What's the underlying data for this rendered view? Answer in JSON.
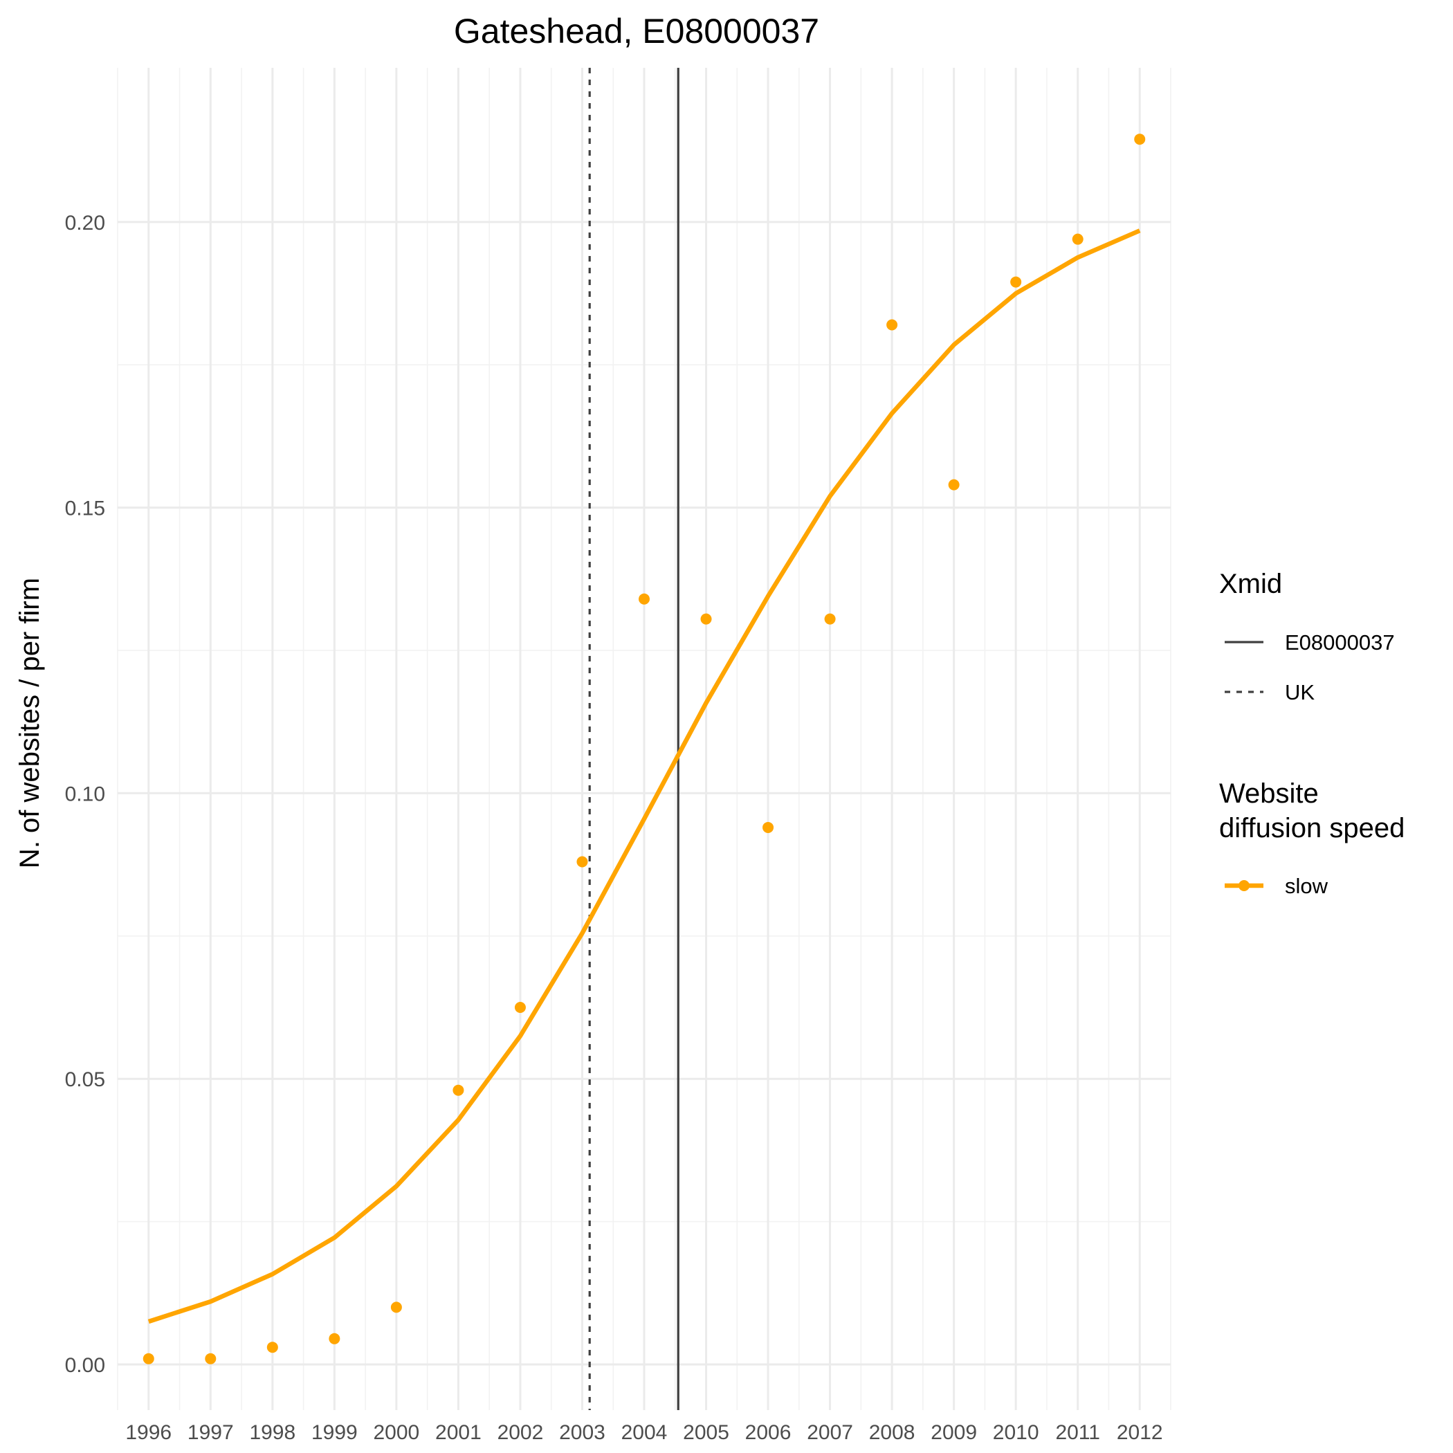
{
  "chart_data": {
    "type": "line",
    "title": "Gateshead, E08000037",
    "xlabel": "",
    "ylabel": "N. of websites / per firm",
    "x": [
      1996,
      1997,
      1998,
      1999,
      2000,
      2001,
      2002,
      2003,
      2004,
      2005,
      2006,
      2007,
      2008,
      2009,
      2010,
      2011,
      2012
    ],
    "xlim": [
      1995.5,
      2012.5
    ],
    "ylim": [
      -0.008,
      0.227
    ],
    "yticks": [
      0.0,
      0.05,
      0.1,
      0.15,
      0.2
    ],
    "ytick_labels": [
      "0.00",
      "0.05",
      "0.10",
      "0.15",
      "0.20"
    ],
    "xtick_labels": [
      "1996",
      "1997",
      "1998",
      "1999",
      "2000",
      "2001",
      "2002",
      "2003",
      "2004",
      "2005",
      "2006",
      "2007",
      "2008",
      "2009",
      "2010",
      "2011",
      "2012"
    ],
    "grid": true,
    "series": [
      {
        "name": "slow",
        "color": "#FFA500",
        "points": [
          0.001,
          0.001,
          0.003,
          0.0045,
          0.01,
          0.048,
          0.0625,
          0.088,
          0.134,
          0.1305,
          0.094,
          0.1305,
          0.182,
          0.154,
          0.1895,
          0.197,
          0.2145
        ],
        "fitted": [
          0.0075,
          0.011,
          0.0158,
          0.0222,
          0.0312,
          0.0428,
          0.0575,
          0.0755,
          0.0955,
          0.1158,
          0.1345,
          0.152,
          0.1665,
          0.1785,
          0.1875,
          0.1938,
          0.1985
        ]
      }
    ],
    "vlines": [
      {
        "name": "E08000037",
        "x": 2004.55,
        "linetype": "solid",
        "color": "#404040"
      },
      {
        "name": "UK",
        "x": 2003.12,
        "linetype": "dashed",
        "color": "#404040"
      }
    ],
    "legend": {
      "position": "right",
      "groups": [
        {
          "title": [
            "Xmid"
          ],
          "items": [
            {
              "label": "E08000037",
              "linetype": "solid"
            },
            {
              "label": "UK",
              "linetype": "dashed"
            }
          ]
        },
        {
          "title": [
            "Website",
            "diffusion speed"
          ],
          "items": [
            {
              "label": "slow",
              "linetype": "line-point"
            }
          ]
        }
      ]
    }
  }
}
